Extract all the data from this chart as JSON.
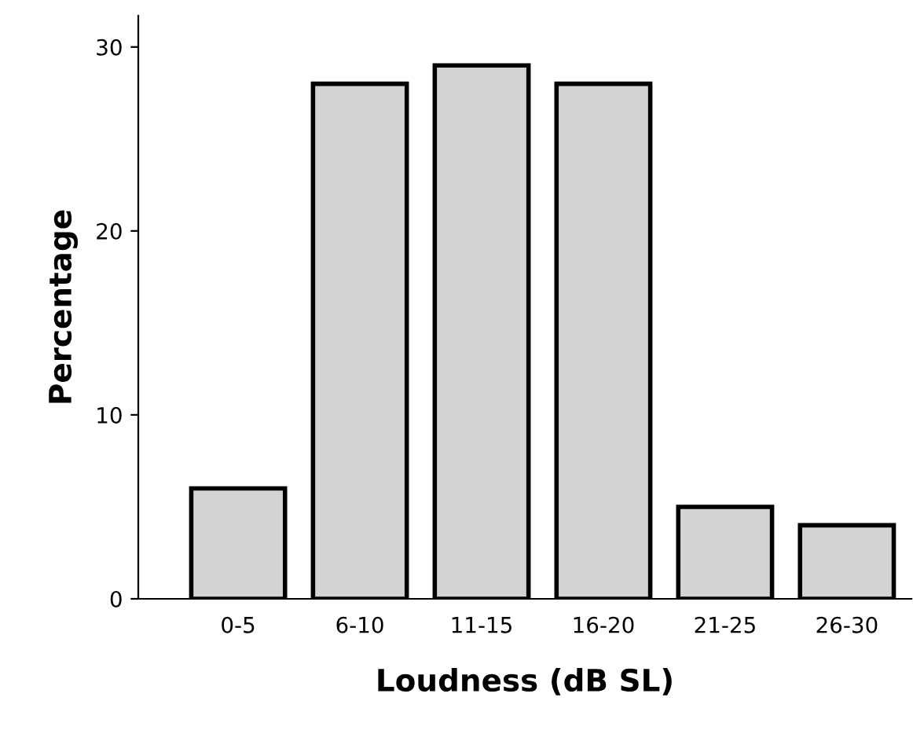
{
  "chart_data": {
    "type": "bar",
    "xlabel": "Loudness (dB SL)",
    "ylabel": "Percentage",
    "categories": [
      "0-5",
      "6-10",
      "11-15",
      "16-20",
      "21-25",
      "26-30"
    ],
    "values": [
      6,
      28,
      29,
      28,
      5,
      4
    ],
    "color": "#d3d3d3",
    "ylim": [
      0,
      31.7
    ],
    "yticks": [
      0,
      10,
      20,
      30
    ],
    "grid": false,
    "legend": false
  }
}
